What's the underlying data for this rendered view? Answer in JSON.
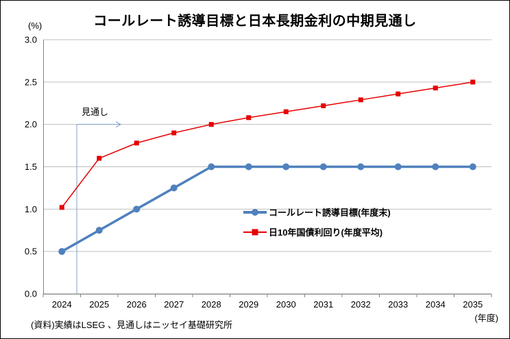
{
  "chart_data": {
    "type": "line",
    "title": "コールレート誘導目標と日本長期金利の中期見通し",
    "ylabel": "(%)",
    "xlabel": "(年度)",
    "source": "(資料)実績はLSEG 、見通しはニッセイ基礎研究所",
    "ylim": [
      0.0,
      3.0
    ],
    "ytick": 0.5,
    "grid": true,
    "legend_position": "inside-center-right",
    "categories": [
      "2024",
      "2025",
      "2026",
      "2027",
      "2028",
      "2029",
      "2030",
      "2031",
      "2032",
      "2033",
      "2034",
      "2035"
    ],
    "series": [
      {
        "name": "コールレート誘導目標(年度末)",
        "color": "#4f81bd",
        "marker": "circle",
        "line_width": 3.5,
        "values": [
          0.5,
          0.75,
          1.0,
          1.25,
          1.5,
          1.5,
          1.5,
          1.5,
          1.5,
          1.5,
          1.5,
          1.5
        ]
      },
      {
        "name": "日10年国債利回り(年度平均)",
        "color": "#e60000",
        "marker": "square",
        "line_width": 1.5,
        "values": [
          1.02,
          1.6,
          1.78,
          1.9,
          2.0,
          2.08,
          2.15,
          2.22,
          2.29,
          2.36,
          2.43,
          2.5
        ]
      }
    ],
    "annotation": {
      "text": "見通し",
      "x_offset": 0.9,
      "y_value": 2.0,
      "color": "#7f9fc8"
    },
    "colors": {
      "gridline": "#bfbfbf",
      "axis": "#808080",
      "border": "#000000"
    }
  }
}
